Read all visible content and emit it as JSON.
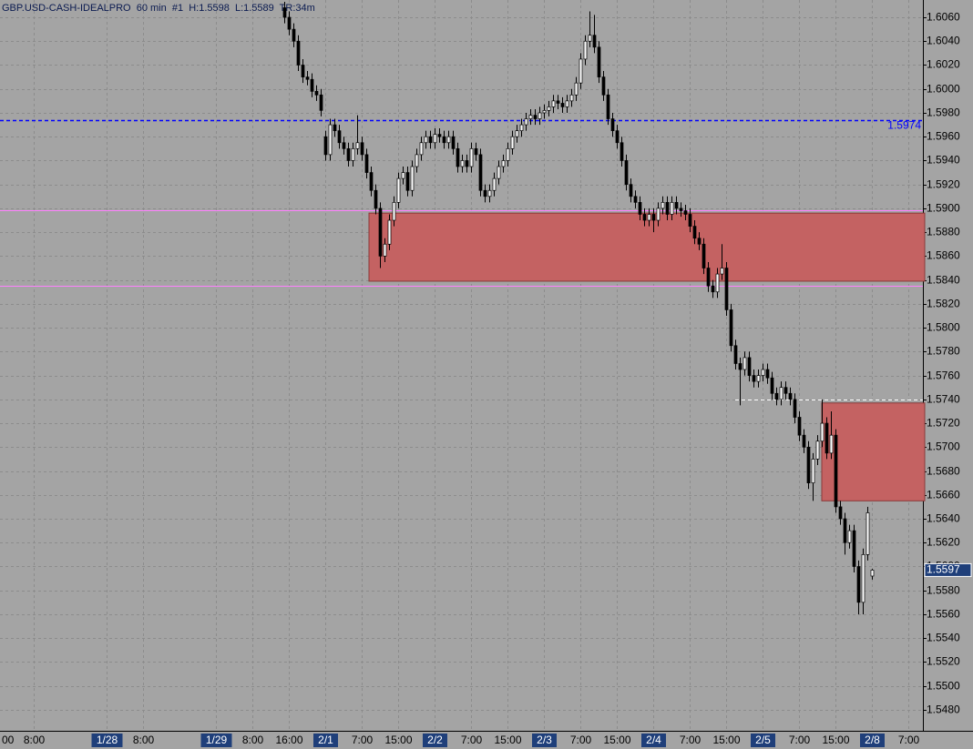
{
  "chart_data": {
    "type": "candlestick",
    "title": "GBP.USD-CASH-IDEALPRO  60 min  #1  H:1.5598  L:1.5589  TR:34m",
    "up_color": "#ffffff",
    "down_color": "#000000",
    "grid": true,
    "xlim": [
      -0.4,
      202.2
    ],
    "ylim": [
      1.54624,
      1.60745
    ],
    "xticks": [
      {
        "value": -1,
        "label": "00"
      },
      {
        "value": 7,
        "label": "8:00"
      },
      {
        "value": 23,
        "label": "1/28"
      },
      {
        "value": 31,
        "label": "8:00"
      },
      {
        "value": 47,
        "label": "1/29"
      },
      {
        "value": 55,
        "label": "8:00"
      },
      {
        "value": 63,
        "label": "16:00"
      },
      {
        "value": 71,
        "label": "2/1"
      },
      {
        "value": 79,
        "label": "7:00"
      },
      {
        "value": 87,
        "label": "15:00"
      },
      {
        "value": 95,
        "label": "2/2"
      },
      {
        "value": 103,
        "label": "7:00"
      },
      {
        "value": 111,
        "label": "15:00"
      },
      {
        "value": 119,
        "label": "2/3"
      },
      {
        "value": 127,
        "label": "7:00"
      },
      {
        "value": 135,
        "label": "15:00"
      },
      {
        "value": 143,
        "label": "2/4"
      },
      {
        "value": 151,
        "label": "7:00"
      },
      {
        "value": 159,
        "label": "15:00"
      },
      {
        "value": 167,
        "label": "2/5"
      },
      {
        "value": 175,
        "label": "7:00"
      },
      {
        "value": 183,
        "label": "15:00"
      },
      {
        "value": 191,
        "label": "2/8"
      },
      {
        "value": 199,
        "label": "7:00"
      }
    ],
    "yticks": [
      {
        "value": 1.606,
        "label": "1.6060"
      },
      {
        "value": 1.604,
        "label": "1.6040"
      },
      {
        "value": 1.602,
        "label": "1.6020"
      },
      {
        "value": 1.6,
        "label": "1.6000"
      },
      {
        "value": 1.598,
        "label": "1.5980"
      },
      {
        "value": 1.596,
        "label": "1.5960"
      },
      {
        "value": 1.594,
        "label": "1.5940"
      },
      {
        "value": 1.592,
        "label": "1.5920"
      },
      {
        "value": 1.59,
        "label": "1.5900"
      },
      {
        "value": 1.588,
        "label": "1.5880"
      },
      {
        "value": 1.586,
        "label": "1.5860"
      },
      {
        "value": 1.584,
        "label": "1.5840"
      },
      {
        "value": 1.582,
        "label": "1.5820"
      },
      {
        "value": 1.58,
        "label": "1.5800"
      },
      {
        "value": 1.578,
        "label": "1.5780"
      },
      {
        "value": 1.576,
        "label": "1.5760"
      },
      {
        "value": 1.574,
        "label": "1.5740"
      },
      {
        "value": 1.572,
        "label": "1.5720"
      },
      {
        "value": 1.57,
        "label": "1.5700"
      },
      {
        "value": 1.568,
        "label": "1.5680"
      },
      {
        "value": 1.566,
        "label": "1.5660"
      },
      {
        "value": 1.564,
        "label": "1.5640"
      },
      {
        "value": 1.562,
        "label": "1.5620"
      },
      {
        "value": 1.56,
        "label": "1.5600"
      },
      {
        "value": 1.558,
        "label": "1.5580"
      },
      {
        "value": 1.556,
        "label": "1.5560"
      },
      {
        "value": 1.554,
        "label": "1.5540"
      },
      {
        "value": 1.552,
        "label": "1.5520"
      },
      {
        "value": 1.55,
        "label": "1.5500"
      },
      {
        "value": 1.548,
        "label": "1.5480"
      }
    ],
    "zones": [
      {
        "x0": 80.6,
        "top": 1.5896,
        "bottom": 1.5839,
        "color": "#c46262"
      },
      {
        "x0": 180,
        "top": 1.5737,
        "bottom": 1.5655,
        "color": "#c46262"
      }
    ],
    "hlines": [
      {
        "value": 1.5974,
        "label": "1.5974",
        "color": "#0000ff",
        "dash": true
      },
      {
        "value": 1.58984,
        "color": "#ff80ff",
        "dash": false
      },
      {
        "value": 1.58352,
        "color": "#ff80ff",
        "dash": false
      },
      {
        "value": 1.574,
        "x0": 161,
        "color": "#ffffff",
        "dash": true
      }
    ],
    "last_price": {
      "value": 1.5597,
      "label": "1.5597"
    },
    "candles": {
      "x": [
        62,
        63,
        64,
        65,
        66,
        67,
        68,
        69,
        70,
        71,
        72,
        73,
        74,
        75,
        76,
        77,
        78,
        79,
        80,
        81,
        82,
        83,
        84,
        85,
        86,
        87,
        88,
        89,
        90,
        91,
        92,
        93,
        94,
        95,
        96,
        97,
        98,
        99,
        100,
        101,
        102,
        103,
        104,
        105,
        106,
        107,
        108,
        109,
        110,
        111,
        112,
        113,
        114,
        115,
        116,
        117,
        118,
        119,
        120,
        121,
        122,
        123,
        124,
        125,
        126,
        127,
        128,
        129,
        130,
        131,
        132,
        133,
        134,
        135,
        136,
        137,
        138,
        139,
        140,
        141,
        142,
        143,
        144,
        145,
        146,
        147,
        148,
        149,
        150,
        151,
        152,
        153,
        154,
        155,
        156,
        157,
        158,
        159,
        160,
        161,
        162,
        163,
        164,
        165,
        166,
        167,
        168,
        169,
        170,
        171,
        172,
        173,
        174,
        175,
        176,
        177,
        178,
        179,
        180,
        181,
        182,
        183,
        184,
        185,
        186,
        187,
        188,
        189,
        190,
        191
      ],
      "open": [
        1.6068,
        1.606,
        1.605,
        1.604,
        1.602,
        1.601,
        1.6008,
        1.5998,
        1.5995,
        1.596,
        1.5945,
        1.597,
        1.5965,
        1.5955,
        1.595,
        1.594,
        1.595,
        1.5955,
        1.5945,
        1.593,
        1.5915,
        1.59,
        1.586,
        1.587,
        1.589,
        1.5905,
        1.5925,
        1.593,
        1.5915,
        1.5935,
        1.5945,
        1.5955,
        1.596,
        1.5955,
        1.5962,
        1.596,
        1.5955,
        1.596,
        1.595,
        1.5935,
        1.594,
        1.5935,
        1.595,
        1.5945,
        1.5915,
        1.591,
        1.5915,
        1.5925,
        1.5935,
        1.594,
        1.595,
        1.596,
        1.5965,
        1.597,
        1.5975,
        1.5978,
        1.5975,
        1.598,
        1.5982,
        1.5985,
        1.599,
        1.5988,
        1.5985,
        1.599,
        1.5995,
        1.6005,
        1.6025,
        1.604,
        1.6045,
        1.6035,
        1.601,
        1.5995,
        1.5975,
        1.5965,
        1.5955,
        1.594,
        1.592,
        1.591,
        1.5905,
        1.5895,
        1.589,
        1.5895,
        1.589,
        1.59,
        1.5905,
        1.5895,
        1.5905,
        1.59,
        1.5898,
        1.5895,
        1.5885,
        1.5875,
        1.587,
        1.585,
        1.5835,
        1.583,
        1.5845,
        1.585,
        1.5815,
        1.5785,
        1.577,
        1.5765,
        1.5775,
        1.576,
        1.5755,
        1.576,
        1.5765,
        1.5758,
        1.5745,
        1.574,
        1.575,
        1.5745,
        1.574,
        1.5725,
        1.571,
        1.57,
        1.567,
        1.569,
        1.5705,
        1.572,
        1.5695,
        1.571,
        1.565,
        1.564,
        1.562,
        1.563,
        1.56,
        1.557,
        1.561,
        1.5592
      ],
      "high": [
        1.6073,
        1.6065,
        1.6055,
        1.6045,
        1.6025,
        1.6015,
        1.6013,
        1.6003,
        1.6,
        1.5965,
        1.5975,
        1.5975,
        1.597,
        1.596,
        1.5955,
        1.5955,
        1.5978,
        1.596,
        1.595,
        1.5935,
        1.592,
        1.5905,
        1.5875,
        1.5895,
        1.591,
        1.593,
        1.5935,
        1.5935,
        1.594,
        1.595,
        1.596,
        1.5965,
        1.5965,
        1.5967,
        1.5967,
        1.5965,
        1.5965,
        1.5965,
        1.5955,
        1.5945,
        1.5945,
        1.5955,
        1.5955,
        1.595,
        1.592,
        1.592,
        1.593,
        1.594,
        1.5945,
        1.5955,
        1.5965,
        1.597,
        1.5975,
        1.598,
        1.5983,
        1.5983,
        1.5985,
        1.5987,
        1.599,
        1.5995,
        1.5995,
        1.5993,
        1.5995,
        1.6,
        1.601,
        1.603,
        1.6045,
        1.6065,
        1.6062,
        1.604,
        1.6015,
        1.6,
        1.598,
        1.597,
        1.596,
        1.5945,
        1.5925,
        1.5915,
        1.591,
        1.59,
        1.59,
        1.59,
        1.5905,
        1.591,
        1.591,
        1.591,
        1.591,
        1.5905,
        1.5903,
        1.59,
        1.589,
        1.588,
        1.5875,
        1.5855,
        1.584,
        1.585,
        1.587,
        1.5855,
        1.582,
        1.579,
        1.5775,
        1.578,
        1.578,
        1.5765,
        1.5765,
        1.577,
        1.577,
        1.5763,
        1.575,
        1.5755,
        1.5755,
        1.575,
        1.5745,
        1.573,
        1.5715,
        1.5705,
        1.5695,
        1.571,
        1.574,
        1.5725,
        1.573,
        1.5715,
        1.5655,
        1.5645,
        1.5635,
        1.5635,
        1.5605,
        1.5615,
        1.565,
        1.5598
      ],
      "low": [
        1.6055,
        1.6045,
        1.6035,
        1.6015,
        1.6005,
        1.6003,
        1.5993,
        1.599,
        1.5977,
        1.594,
        1.594,
        1.596,
        1.595,
        1.5945,
        1.5935,
        1.5935,
        1.5945,
        1.594,
        1.5925,
        1.591,
        1.5895,
        1.585,
        1.5855,
        1.5865,
        1.5885,
        1.59,
        1.592,
        1.591,
        1.591,
        1.593,
        1.594,
        1.595,
        1.595,
        1.595,
        1.5955,
        1.595,
        1.595,
        1.5945,
        1.593,
        1.593,
        1.593,
        1.593,
        1.594,
        1.591,
        1.5905,
        1.5905,
        1.591,
        1.592,
        1.593,
        1.5935,
        1.5945,
        1.5955,
        1.596,
        1.5965,
        1.597,
        1.597,
        1.597,
        1.5975,
        1.5977,
        1.598,
        1.5983,
        1.598,
        1.598,
        1.5985,
        1.599,
        1.6,
        1.602,
        1.6035,
        1.603,
        1.6005,
        1.599,
        1.597,
        1.596,
        1.595,
        1.5935,
        1.5915,
        1.5905,
        1.59,
        1.589,
        1.5885,
        1.5885,
        1.588,
        1.5885,
        1.5895,
        1.589,
        1.589,
        1.5895,
        1.5893,
        1.589,
        1.588,
        1.587,
        1.5865,
        1.5845,
        1.583,
        1.5825,
        1.5825,
        1.584,
        1.581,
        1.578,
        1.5765,
        1.5735,
        1.576,
        1.5755,
        1.575,
        1.575,
        1.5755,
        1.5753,
        1.574,
        1.5735,
        1.5735,
        1.574,
        1.5735,
        1.572,
        1.5705,
        1.5695,
        1.5665,
        1.5655,
        1.5685,
        1.57,
        1.569,
        1.569,
        1.5645,
        1.5635,
        1.561,
        1.5615,
        1.5595,
        1.556,
        1.556,
        1.5605,
        1.5589
      ],
      "close": [
        1.606,
        1.605,
        1.604,
        1.602,
        1.601,
        1.6008,
        1.5998,
        1.5995,
        1.5982,
        1.5945,
        1.597,
        1.5965,
        1.5955,
        1.595,
        1.594,
        1.595,
        1.5955,
        1.5945,
        1.593,
        1.5915,
        1.59,
        1.586,
        1.587,
        1.589,
        1.5905,
        1.5925,
        1.593,
        1.5915,
        1.5935,
        1.5945,
        1.5955,
        1.596,
        1.5955,
        1.5962,
        1.596,
        1.5955,
        1.596,
        1.595,
        1.5935,
        1.594,
        1.5935,
        1.595,
        1.5945,
        1.5915,
        1.591,
        1.5915,
        1.5925,
        1.5935,
        1.594,
        1.595,
        1.596,
        1.5965,
        1.597,
        1.5975,
        1.5978,
        1.5975,
        1.598,
        1.5982,
        1.5985,
        1.599,
        1.5988,
        1.5985,
        1.599,
        1.5995,
        1.6005,
        1.6025,
        1.604,
        1.6045,
        1.6035,
        1.601,
        1.5995,
        1.5975,
        1.5965,
        1.5955,
        1.594,
        1.592,
        1.591,
        1.5905,
        1.5895,
        1.589,
        1.5895,
        1.589,
        1.59,
        1.5905,
        1.5895,
        1.5905,
        1.59,
        1.5898,
        1.5895,
        1.5885,
        1.5875,
        1.587,
        1.585,
        1.5835,
        1.583,
        1.5845,
        1.585,
        1.5815,
        1.5785,
        1.577,
        1.5765,
        1.5775,
        1.576,
        1.5755,
        1.576,
        1.5765,
        1.5758,
        1.5745,
        1.574,
        1.575,
        1.5745,
        1.574,
        1.5725,
        1.571,
        1.57,
        1.567,
        1.569,
        1.5705,
        1.572,
        1.5695,
        1.571,
        1.565,
        1.564,
        1.562,
        1.563,
        1.56,
        1.557,
        1.561,
        1.5645,
        1.5597
      ]
    }
  }
}
